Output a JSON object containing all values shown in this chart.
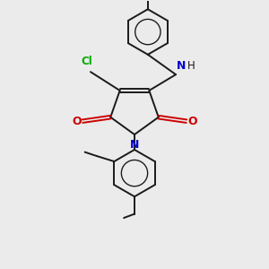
{
  "background_color": "#ebebeb",
  "bond_color": "#1a1a1a",
  "atom_colors": {
    "N_ring": "#0000cc",
    "N_amine": "#0000cc",
    "O": "#cc0000",
    "Cl": "#00aa00",
    "H": "#1a1a1a",
    "C": "#1a1a1a"
  },
  "figsize": [
    3.0,
    3.0
  ],
  "dpi": 100
}
